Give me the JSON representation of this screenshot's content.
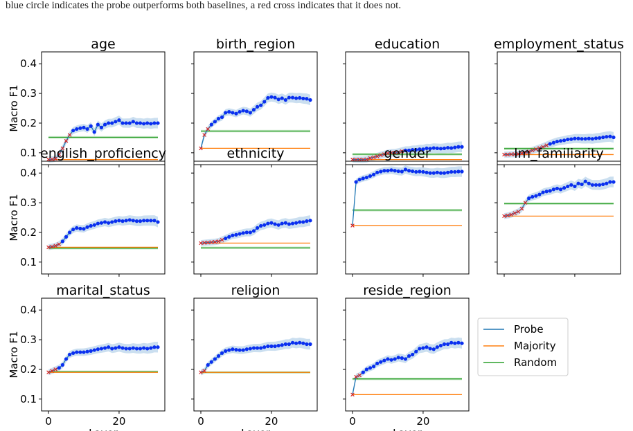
{
  "caption": "blue circle indicates the probe outperforms both baselines, a red cross indicates that it does not.",
  "legend": {
    "probe": "Probe",
    "majority": "Majority",
    "random": "Random"
  },
  "colors": {
    "probe": "#1f77b4",
    "majority": "#ff7f0e",
    "random": "#2ca02c",
    "band": "#a9c9e6",
    "win": "#0a2ff0",
    "lose": "#d62728"
  },
  "chart_data": {
    "type": "line",
    "grid": false,
    "legend_position": "bottom-right",
    "ylabel": "Macro F1",
    "xlabel": "Layer",
    "xlim": [
      0,
      31
    ],
    "xticks": [
      0,
      20
    ],
    "ylim": [
      0.06,
      0.44
    ],
    "yticks": [
      0.1,
      0.2,
      0.3,
      0.4
    ],
    "panels": [
      {
        "title": "age",
        "majority": 0.077,
        "random": 0.152,
        "probe": [
          0.077,
          0.078,
          0.08,
          0.095,
          0.115,
          0.14,
          0.16,
          0.175,
          0.18,
          0.183,
          0.185,
          0.18,
          0.19,
          0.17,
          0.195,
          0.185,
          0.195,
          0.2,
          0.2,
          0.205,
          0.21,
          0.2,
          0.2,
          0.2,
          0.205,
          0.2,
          0.2,
          0.198,
          0.2,
          0.198,
          0.2,
          0.2
        ]
      },
      {
        "title": "birth_region",
        "majority": 0.115,
        "random": 0.173,
        "probe": [
          0.115,
          0.16,
          0.18,
          0.195,
          0.205,
          0.215,
          0.22,
          0.235,
          0.238,
          0.235,
          0.232,
          0.238,
          0.242,
          0.24,
          0.235,
          0.245,
          0.255,
          0.26,
          0.272,
          0.285,
          0.288,
          0.286,
          0.28,
          0.284,
          0.278,
          0.286,
          0.286,
          0.284,
          0.285,
          0.283,
          0.282,
          0.278
        ]
      },
      {
        "title": "education",
        "majority": 0.077,
        "random": 0.095,
        "probe": [
          0.077,
          0.077,
          0.077,
          0.077,
          0.078,
          0.082,
          0.085,
          0.088,
          0.092,
          0.095,
          0.098,
          0.1,
          0.1,
          0.102,
          0.105,
          0.108,
          0.108,
          0.11,
          0.11,
          0.112,
          0.112,
          0.115,
          0.114,
          0.116,
          0.115,
          0.114,
          0.115,
          0.117,
          0.116,
          0.118,
          0.12,
          0.12
        ]
      },
      {
        "title": "employment_status",
        "majority": 0.094,
        "random": 0.114,
        "probe": [
          0.094,
          0.094,
          0.095,
          0.095,
          0.096,
          0.098,
          0.1,
          0.104,
          0.108,
          0.112,
          0.116,
          0.12,
          0.125,
          0.13,
          0.134,
          0.138,
          0.14,
          0.142,
          0.145,
          0.146,
          0.148,
          0.148,
          0.147,
          0.147,
          0.148,
          0.147,
          0.149,
          0.15,
          0.152,
          0.154,
          0.155,
          0.152
        ]
      },
      {
        "title": "english_proficiency",
        "majority": 0.15,
        "random": 0.147,
        "probe": [
          0.15,
          0.152,
          0.155,
          0.16,
          0.17,
          0.185,
          0.2,
          0.21,
          0.215,
          0.213,
          0.212,
          0.218,
          0.222,
          0.225,
          0.23,
          0.232,
          0.235,
          0.232,
          0.235,
          0.238,
          0.24,
          0.238,
          0.24,
          0.242,
          0.24,
          0.238,
          0.238,
          0.24,
          0.24,
          0.24,
          0.24,
          0.235
        ]
      },
      {
        "title": "ethnicity",
        "majority": 0.164,
        "random": 0.148,
        "probe": [
          0.164,
          0.165,
          0.166,
          0.167,
          0.168,
          0.17,
          0.175,
          0.18,
          0.185,
          0.19,
          0.192,
          0.195,
          0.198,
          0.2,
          0.2,
          0.205,
          0.215,
          0.222,
          0.225,
          0.23,
          0.232,
          0.228,
          0.225,
          0.23,
          0.232,
          0.228,
          0.23,
          0.232,
          0.235,
          0.235,
          0.238,
          0.24
        ]
      },
      {
        "title": "gender",
        "majority": 0.223,
        "random": 0.275,
        "probe": [
          0.223,
          0.37,
          0.378,
          0.382,
          0.385,
          0.39,
          0.395,
          0.402,
          0.405,
          0.408,
          0.408,
          0.41,
          0.408,
          0.406,
          0.405,
          0.412,
          0.408,
          0.406,
          0.404,
          0.405,
          0.404,
          0.402,
          0.4,
          0.4,
          0.402,
          0.4,
          0.4,
          0.402,
          0.404,
          0.404,
          0.405,
          0.405
        ]
      },
      {
        "title": "lm_familiarity",
        "majority": 0.255,
        "random": 0.297,
        "probe": [
          0.255,
          0.257,
          0.26,
          0.265,
          0.27,
          0.28,
          0.3,
          0.315,
          0.32,
          0.323,
          0.328,
          0.335,
          0.338,
          0.34,
          0.345,
          0.348,
          0.345,
          0.35,
          0.355,
          0.36,
          0.355,
          0.365,
          0.362,
          0.372,
          0.365,
          0.36,
          0.36,
          0.36,
          0.362,
          0.365,
          0.37,
          0.37
        ]
      },
      {
        "title": "marital_status",
        "majority": 0.19,
        "random": 0.192,
        "probe": [
          0.19,
          0.195,
          0.2,
          0.205,
          0.215,
          0.235,
          0.25,
          0.255,
          0.258,
          0.258,
          0.258,
          0.26,
          0.262,
          0.265,
          0.268,
          0.27,
          0.272,
          0.275,
          0.27,
          0.272,
          0.275,
          0.272,
          0.27,
          0.27,
          0.272,
          0.27,
          0.27,
          0.272,
          0.27,
          0.272,
          0.275,
          0.275
        ]
      },
      {
        "title": "religion",
        "majority": 0.19,
        "random": 0.19,
        "probe": [
          0.19,
          0.195,
          0.215,
          0.225,
          0.235,
          0.245,
          0.255,
          0.262,
          0.265,
          0.268,
          0.266,
          0.265,
          0.265,
          0.268,
          0.27,
          0.272,
          0.272,
          0.272,
          0.275,
          0.278,
          0.278,
          0.278,
          0.28,
          0.282,
          0.285,
          0.285,
          0.29,
          0.288,
          0.29,
          0.288,
          0.285,
          0.285
        ]
      },
      {
        "title": "reside_region",
        "majority": 0.115,
        "random": 0.168,
        "probe": [
          0.115,
          0.175,
          0.18,
          0.19,
          0.2,
          0.205,
          0.21,
          0.22,
          0.225,
          0.23,
          0.235,
          0.232,
          0.235,
          0.24,
          0.238,
          0.235,
          0.245,
          0.25,
          0.26,
          0.27,
          0.272,
          0.275,
          0.27,
          0.268,
          0.275,
          0.28,
          0.285,
          0.285,
          0.29,
          0.288,
          0.29,
          0.288
        ]
      }
    ]
  }
}
